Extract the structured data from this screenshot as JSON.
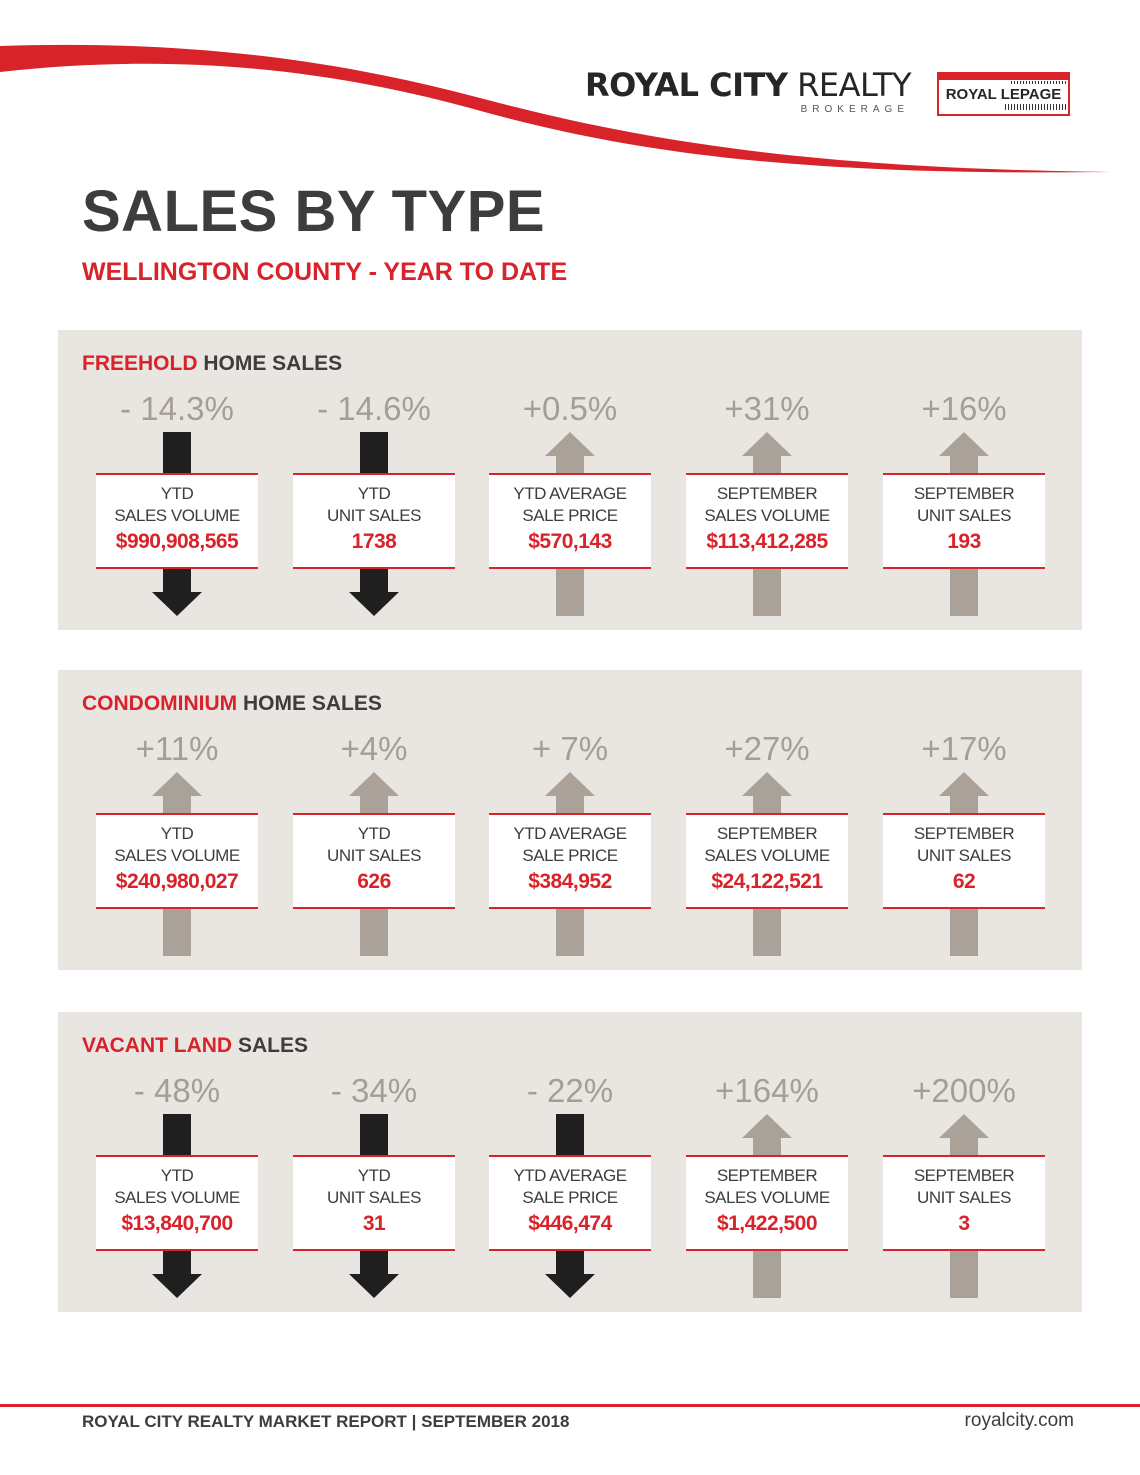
{
  "header": {
    "brand_part1": "ROYAL CITY",
    "brand_part2": " REALTY",
    "brand_sub": "BROKERAGE",
    "partner_logo": "ROYAL LEPAGE",
    "accent_color": "#d8232a"
  },
  "title": "SALES BY TYPE",
  "subtitle": "WELLINGTON COUNTY - YEAR TO DATE",
  "sections": [
    {
      "title_accent": "FREEHOLD",
      "title_rest": " HOME SALES",
      "metrics": [
        {
          "change": "- 14.3%",
          "direction": "down",
          "line1": "YTD",
          "line2": "SALES VOLUME",
          "value": "$990,908,565"
        },
        {
          "change": "- 14.6%",
          "direction": "down",
          "line1": "YTD",
          "line2": "UNIT SALES",
          "value": "1738"
        },
        {
          "change": "+0.5%",
          "direction": "up",
          "line1": "YTD AVERAGE",
          "line2": "SALE PRICE",
          "value": "$570,143"
        },
        {
          "change": "+31%",
          "direction": "up",
          "line1": "SEPTEMBER",
          "line2": "SALES VOLUME",
          "value": "$113,412,285"
        },
        {
          "change": "+16%",
          "direction": "up",
          "line1": "SEPTEMBER",
          "line2": "UNIT SALES",
          "value": "193"
        }
      ]
    },
    {
      "title_accent": "CONDOMINIUM",
      "title_rest": " HOME SALES",
      "metrics": [
        {
          "change": "+11%",
          "direction": "up",
          "line1": "YTD",
          "line2": "SALES VOLUME",
          "value": "$240,980,027"
        },
        {
          "change": "+4%",
          "direction": "up",
          "line1": "YTD",
          "line2": "UNIT SALES",
          "value": "626"
        },
        {
          "change": "+ 7%",
          "direction": "up",
          "line1": "YTD AVERAGE",
          "line2": "SALE PRICE",
          "value": "$384,952"
        },
        {
          "change": "+27%",
          "direction": "up",
          "line1": "SEPTEMBER",
          "line2": "SALES VOLUME",
          "value": "$24,122,521"
        },
        {
          "change": "+17%",
          "direction": "up",
          "line1": "SEPTEMBER",
          "line2": "UNIT SALES",
          "value": "62"
        }
      ]
    },
    {
      "title_accent": "VACANT LAND",
      "title_rest": " SALES",
      "metrics": [
        {
          "change": "- 48%",
          "direction": "down",
          "line1": "YTD",
          "line2": "SALES VOLUME",
          "value": "$13,840,700"
        },
        {
          "change": "- 34%",
          "direction": "down",
          "line1": "YTD",
          "line2": "UNIT SALES",
          "value": "31"
        },
        {
          "change": "- 22%",
          "direction": "down",
          "line1": "YTD AVERAGE",
          "line2": "SALE PRICE",
          "value": "$446,474"
        },
        {
          "change": "+164%",
          "direction": "up",
          "line1": "SEPTEMBER",
          "line2": "SALES VOLUME",
          "value": "$1,422,500"
        },
        {
          "change": "+200%",
          "direction": "up",
          "line1": "SEPTEMBER",
          "line2": "UNIT SALES",
          "value": "3"
        }
      ]
    }
  ],
  "footer": {
    "left": "ROYAL CITY REALTY MARKET REPORT | SEPTEMBER 2018",
    "right": "royalcity.com"
  }
}
